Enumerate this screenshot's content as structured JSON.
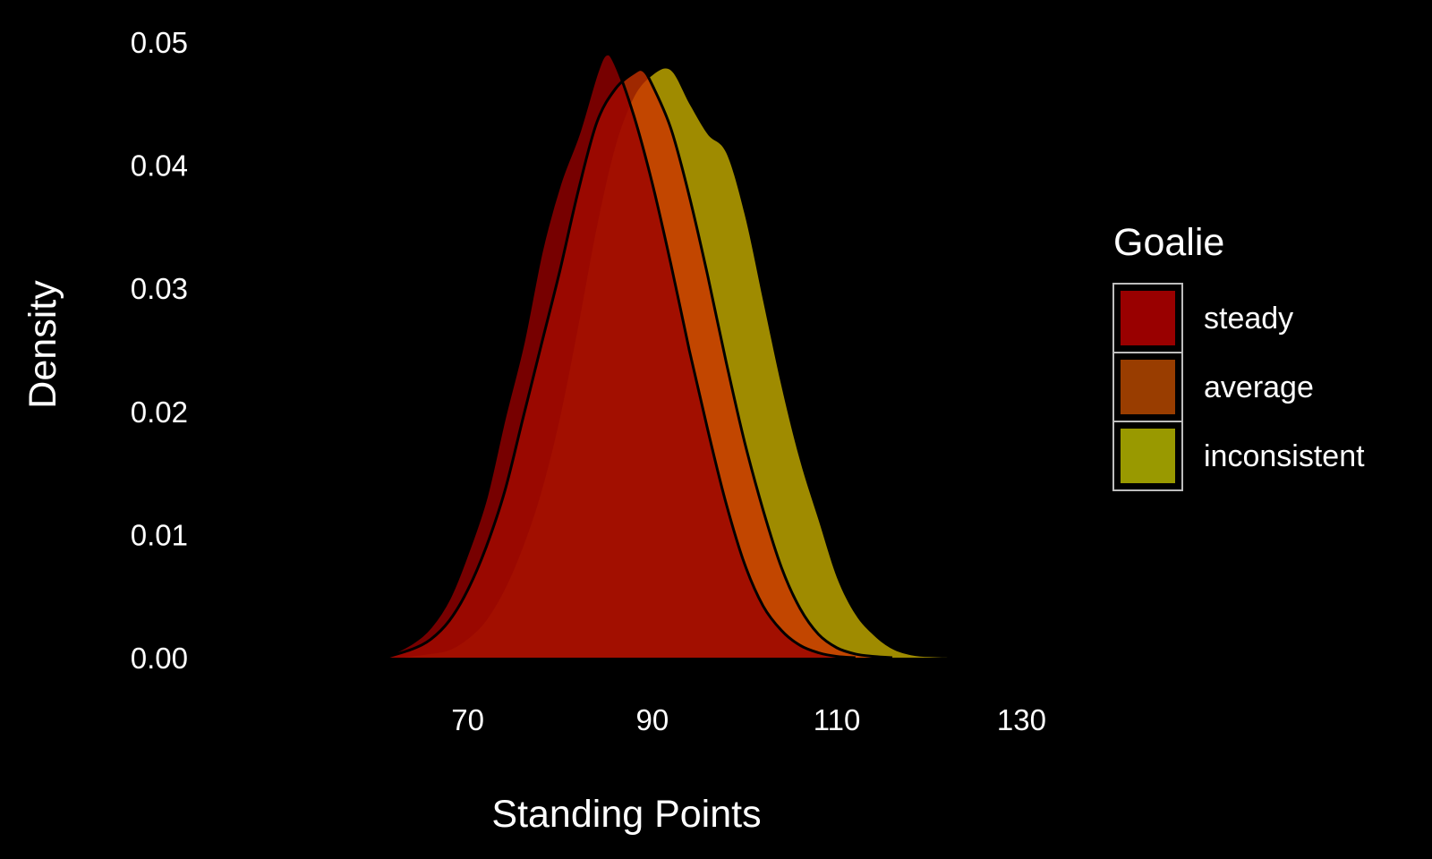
{
  "chart_data": {
    "type": "area",
    "xlabel": "Standing Points",
    "ylabel": "Density",
    "xlim": [
      52,
      132
    ],
    "ylim": [
      0,
      0.05
    ],
    "x_ticks": [
      70,
      90,
      110,
      130
    ],
    "y_ticks": [
      0.0,
      0.01,
      0.02,
      0.03,
      0.04,
      0.05
    ],
    "y_tick_labels": [
      "0.00",
      "0.01",
      "0.02",
      "0.03",
      "0.04",
      "0.05"
    ],
    "grid": false,
    "legend": {
      "title": "Goalie",
      "placement": "right",
      "entries": [
        {
          "label": "steady",
          "color": "#990000"
        },
        {
          "label": "average",
          "color": "#993D00"
        },
        {
          "label": "inconsistent",
          "color": "#999900"
        }
      ]
    },
    "series": [
      {
        "name": "inconsistent",
        "color": "#999900",
        "x": [
          63,
          66,
          68,
          70,
          72,
          74,
          76,
          78,
          80,
          82,
          84,
          86,
          88,
          90,
          92,
          94,
          96,
          98,
          100,
          102,
          104,
          106,
          108,
          110,
          112,
          114,
          116,
          118,
          120,
          122
        ],
        "y": [
          0,
          0.0003,
          0.0006,
          0.0015,
          0.003,
          0.0055,
          0.009,
          0.0135,
          0.0195,
          0.027,
          0.035,
          0.0415,
          0.0455,
          0.0473,
          0.0477,
          0.045,
          0.0425,
          0.041,
          0.036,
          0.029,
          0.022,
          0.016,
          0.0112,
          0.0065,
          0.0035,
          0.0018,
          0.0007,
          0.0002,
          5e-05,
          0
        ]
      },
      {
        "name": "average",
        "color": "#993D00",
        "x": [
          61,
          64,
          66,
          68,
          70,
          72,
          74,
          76,
          78,
          80,
          82,
          84,
          86,
          88,
          89,
          90,
          92,
          94,
          96,
          98,
          100,
          102,
          104,
          106,
          108,
          110,
          112,
          114,
          116
        ],
        "y": [
          0,
          0.0007,
          0.0015,
          0.003,
          0.0055,
          0.009,
          0.0135,
          0.0195,
          0.0255,
          0.0315,
          0.038,
          0.0435,
          0.0462,
          0.0475,
          0.0477,
          0.0465,
          0.043,
          0.0375,
          0.031,
          0.024,
          0.0175,
          0.012,
          0.0073,
          0.004,
          0.0019,
          0.0008,
          0.0003,
          0.0001,
          0
        ]
      },
      {
        "name": "steady",
        "color": "#990000",
        "x": [
          61,
          64,
          66,
          68,
          70,
          72,
          74,
          76,
          78,
          80,
          82,
          84,
          85,
          86,
          88,
          90,
          92,
          94,
          96,
          98,
          100,
          102,
          104,
          106,
          108,
          110,
          112
        ],
        "y": [
          0,
          0.0012,
          0.0025,
          0.0048,
          0.0085,
          0.013,
          0.0195,
          0.0255,
          0.033,
          0.0385,
          0.0425,
          0.0475,
          0.049,
          0.0482,
          0.044,
          0.0385,
          0.032,
          0.025,
          0.0185,
          0.0125,
          0.0076,
          0.0042,
          0.0022,
          0.001,
          0.0004,
          0.0001,
          0
        ]
      }
    ]
  }
}
